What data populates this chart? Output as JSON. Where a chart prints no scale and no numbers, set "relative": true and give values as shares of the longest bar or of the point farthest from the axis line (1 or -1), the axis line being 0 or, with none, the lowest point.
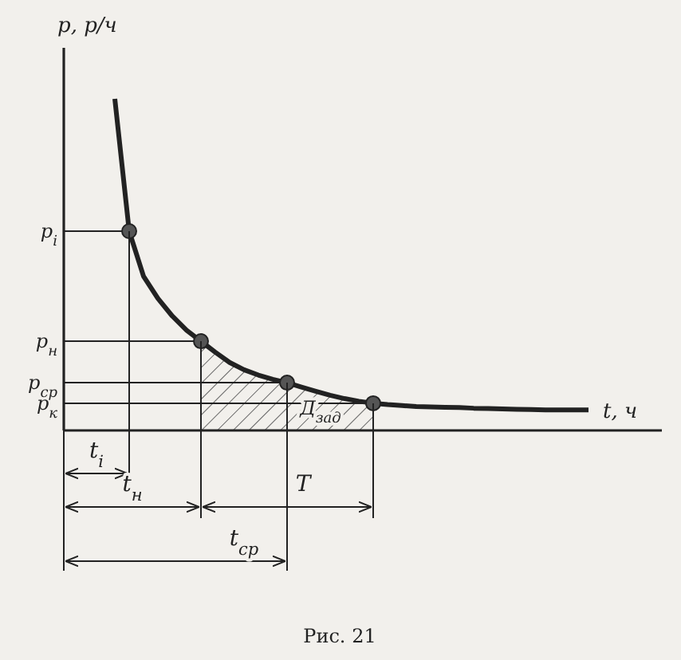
{
  "chart_data": {
    "type": "line",
    "relative": true,
    "xlabel": "t, ч",
    "ylabel": "p, р/ч",
    "categories": [
      null,
      null,
      null,
      null,
      null,
      null,
      null,
      null,
      null,
      null,
      null,
      null,
      null,
      null,
      null,
      null,
      null,
      null,
      null,
      null,
      null,
      null,
      null,
      null,
      null,
      null,
      null,
      null,
      null,
      null,
      null,
      null,
      null,
      null
    ],
    "series": [
      {
        "color": "#222222",
        "values": [
          1,
          0.601,
          0.465,
          0.398,
          0.345,
          0.302,
          0.269,
          0.236,
          0.205,
          0.183,
          0.167,
          0.154,
          0.144,
          0.131,
          0.118,
          0.106,
          0.096,
          0.088,
          0.082,
          0.078,
          0.075,
          0.072,
          0.071,
          0.07,
          0.069,
          0.067,
          0.066,
          0.065,
          0.064,
          0.063,
          0.062,
          0.062,
          0.062,
          0.062
        ]
      }
    ],
    "ref_lines": [
      {
        "axis": "y",
        "value": 0.601,
        "label": "p$_{i}$"
      },
      {
        "axis": "y",
        "value": 0.269,
        "label": "p$_{н}$"
      },
      {
        "axis": "y",
        "value": 0.144,
        "label": "p$_{ср}$"
      },
      {
        "axis": "y",
        "value": 0.082,
        "label": "p$_{к}$"
      }
    ],
    "annotations": [
      "Д$_{зад}$",
      "t$_{i}$",
      "t$_{н}$",
      "T",
      "t$_{ср}$",
      "Рис. 21"
    ]
  }
}
